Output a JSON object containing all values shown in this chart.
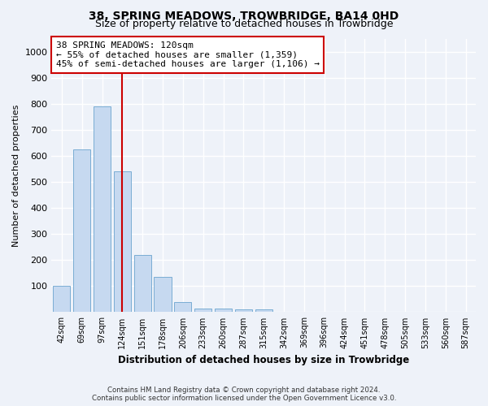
{
  "title": "38, SPRING MEADOWS, TROWBRIDGE, BA14 0HD",
  "subtitle": "Size of property relative to detached houses in Trowbridge",
  "xlabel": "Distribution of detached houses by size in Trowbridge",
  "ylabel": "Number of detached properties",
  "categories": [
    "42sqm",
    "69sqm",
    "97sqm",
    "124sqm",
    "151sqm",
    "178sqm",
    "206sqm",
    "233sqm",
    "260sqm",
    "287sqm",
    "315sqm",
    "342sqm",
    "369sqm",
    "396sqm",
    "424sqm",
    "451sqm",
    "478sqm",
    "505sqm",
    "533sqm",
    "560sqm",
    "587sqm"
  ],
  "values": [
    100,
    625,
    790,
    540,
    220,
    135,
    40,
    15,
    15,
    10,
    10,
    0,
    0,
    0,
    0,
    0,
    0,
    0,
    0,
    0,
    0
  ],
  "bar_color": "#c6d9f0",
  "bar_edge_color": "#7aadd4",
  "vline_x_index": 3,
  "vline_color": "#cc0000",
  "annotation_line1": "38 SPRING MEADOWS: 120sqm",
  "annotation_line2": "← 55% of detached houses are smaller (1,359)",
  "annotation_line3": "45% of semi-detached houses are larger (1,106) →",
  "annotation_box_color": "#cc0000",
  "ylim": [
    0,
    1050
  ],
  "yticks": [
    0,
    100,
    200,
    300,
    400,
    500,
    600,
    700,
    800,
    900,
    1000
  ],
  "footer_line1": "Contains HM Land Registry data © Crown copyright and database right 2024.",
  "footer_line2": "Contains public sector information licensed under the Open Government Licence v3.0.",
  "bg_color": "#eef2f9",
  "grid_color": "#ffffff",
  "title_fontsize": 10,
  "subtitle_fontsize": 9,
  "annotation_fontsize": 8
}
